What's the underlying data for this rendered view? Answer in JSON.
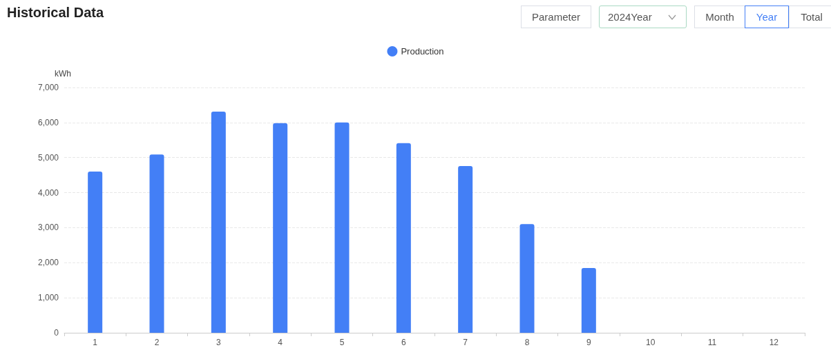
{
  "chart_data": {
    "type": "bar",
    "title": "Historical Data",
    "ylabel": "kWh",
    "annotations": [
      "Parameter",
      "2024Year",
      "Month",
      "Year",
      "Total"
    ],
    "categories": [
      "1",
      "2",
      "3",
      "4",
      "5",
      "6",
      "7",
      "8",
      "9",
      "10",
      "11",
      "12"
    ],
    "series": [
      {
        "name": "Production",
        "color": "#437ff6",
        "values": [
          4600,
          5090,
          6310,
          5980,
          6000,
          5410,
          4760,
          3100,
          1850,
          null,
          null,
          null
        ]
      }
    ],
    "ylim": [
      0,
      7000
    ],
    "yticks": [
      0,
      {
        "value": 1000,
        "label": "1,000"
      },
      {
        "value": 2000,
        "label": "2,000"
      },
      {
        "value": 3000,
        "label": "3,000"
      },
      {
        "value": 4000,
        "label": "4,000"
      },
      {
        "value": 5000,
        "label": "5,000"
      },
      {
        "value": 6000,
        "label": "6,000"
      },
      {
        "value": 7000,
        "label": "7,000"
      }
    ],
    "grid": "y",
    "legend": "top"
  }
}
